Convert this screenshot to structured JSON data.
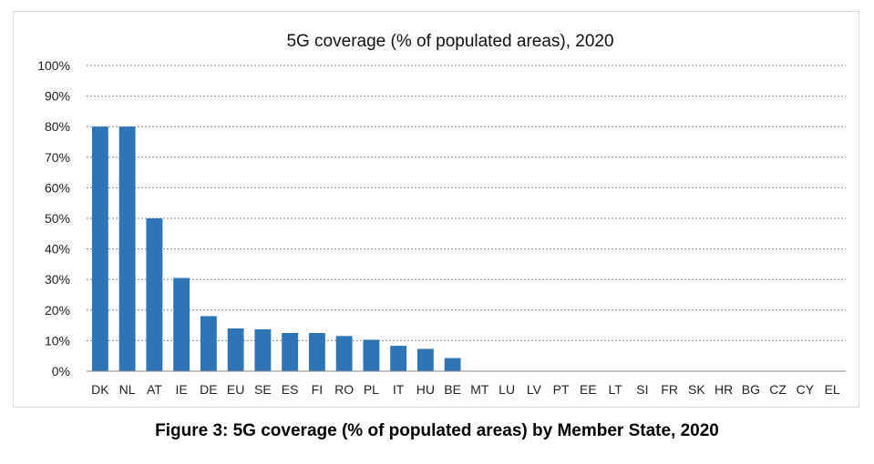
{
  "chart_data": {
    "type": "bar",
    "title": "5G coverage (% of populated areas), 2020",
    "categories": [
      "DK",
      "NL",
      "AT",
      "IE",
      "DE",
      "EU",
      "SE",
      "ES",
      "FI",
      "RO",
      "PL",
      "IT",
      "HU",
      "BE",
      "MT",
      "LU",
      "LV",
      "PT",
      "EE",
      "LT",
      "SI",
      "FR",
      "SK",
      "HR",
      "BG",
      "CZ",
      "CY",
      "EL"
    ],
    "values": [
      80,
      80,
      50,
      30.5,
      18,
      14,
      13.7,
      12.5,
      12.5,
      11.5,
      10.3,
      8.3,
      7.3,
      4.3,
      0,
      0,
      0,
      0,
      0,
      0,
      0,
      0,
      0,
      0,
      0,
      0,
      0,
      0
    ],
    "xlabel": "",
    "ylabel": "",
    "ylim": [
      0,
      100
    ],
    "y_ticks": [
      0,
      10,
      20,
      30,
      40,
      50,
      60,
      70,
      80,
      90,
      100
    ],
    "y_tick_labels": [
      "0%",
      "10%",
      "20%",
      "30%",
      "40%",
      "50%",
      "60%",
      "70%",
      "80%",
      "90%",
      "100%"
    ],
    "gridlines": "dashed horizontal",
    "bar_color": "#2e75b6",
    "grid_color": "#8c8c8c"
  },
  "caption": "Figure 3: 5G coverage (% of populated areas) by Member State, 2020"
}
